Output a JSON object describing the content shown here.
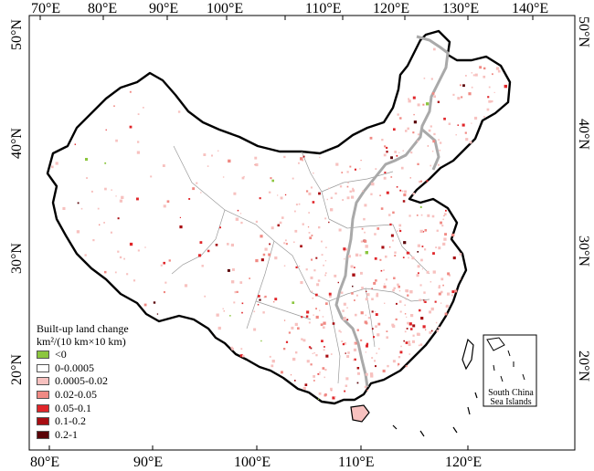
{
  "top_axis": {
    "labels": [
      "70°E",
      "80°E",
      "90°E",
      "100°E",
      "110°E",
      "120°E",
      "130°E",
      "140°E"
    ]
  },
  "bottom_axis": {
    "labels": [
      "80°E",
      "90°E",
      "100°E",
      "110°E",
      "120°E"
    ]
  },
  "left_axis": {
    "labels": [
      "50°N",
      "40°N",
      "30°N",
      "20°N"
    ]
  },
  "right_axis": {
    "labels": [
      "50°N",
      "40°N",
      "30°N",
      "20°N"
    ]
  },
  "legend": {
    "title_line1": "Built-up land change",
    "title_line2": "km²/(10 km×10 km)",
    "items": [
      {
        "label": "<0",
        "color": "#8cc63f"
      },
      {
        "label": "0-0.0005",
        "color": "#ffffff"
      },
      {
        "label": "0.0005-0.02",
        "color": "#f7c1bf"
      },
      {
        "label": "0.02-0.05",
        "color": "#f08a84"
      },
      {
        "label": "0.05-0.1",
        "color": "#e0262a"
      },
      {
        "label": "0.1-0.2",
        "color": "#a80d12"
      },
      {
        "label": "0.2-1",
        "color": "#5a0408"
      }
    ]
  },
  "inset": {
    "label_line1": "South China",
    "label_line2": "Sea Islands"
  },
  "colors": {
    "national_border": "#000000",
    "province_border": "#9a9a9a",
    "region_divider": "#a9a9a9"
  }
}
